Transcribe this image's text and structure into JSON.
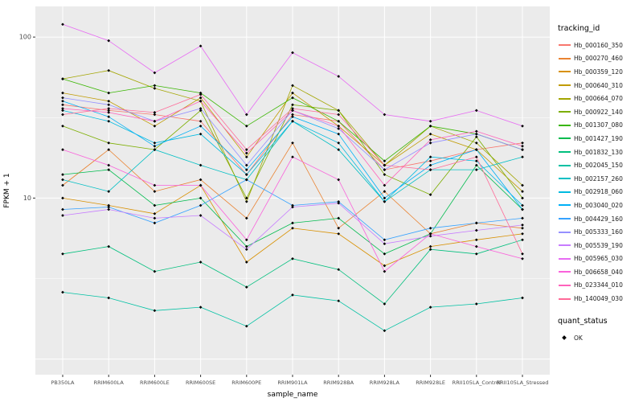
{
  "colors": {
    "panel_bg": "#EBEBEB",
    "grid": "#FFFFFF",
    "tick_text": "#4D4D4D",
    "axis_text": "#000000",
    "point": "#000000"
  },
  "legend": {
    "tracking_title": "tracking_id",
    "quant_title": "quant_status",
    "quant_ok_label": "OK"
  },
  "chart_data": {
    "type": "line",
    "title": "",
    "xlabel": "sample_name",
    "ylabel": "FPKM + 1",
    "y_scale": "log10",
    "ylim": [
      0.8,
      155
    ],
    "grid": {
      "major_y": [
        1,
        10,
        100
      ],
      "minor_y": [
        3.162,
        31.62
      ],
      "vertical_at_categories": true
    },
    "yticks": [
      {
        "label": "100",
        "value": 100
      },
      {
        "label": "10",
        "value": 10
      }
    ],
    "categories": [
      "PB350LA",
      "RRIM600LA",
      "RRIM600LE",
      "RRIM600SE",
      "RRIM600PE",
      "RRIM901LA",
      "RRIM928BA",
      "RRIM928LA",
      "RRIM928LE",
      "RRII105LA_Control",
      "RRII105LA_Stressed"
    ],
    "point_marker": "black-square",
    "legend_position": "right",
    "series": [
      {
        "name": "Hb_000160_350",
        "color": "#F8766D",
        "values": [
          38,
          35,
          33,
          30,
          14,
          33,
          30,
          15,
          17,
          20,
          22
        ]
      },
      {
        "name": "Hb_000270_460",
        "color": "#EA8331",
        "values": [
          12,
          20,
          11,
          13,
          7.5,
          22,
          6.5,
          11,
          6,
          7,
          6.5
        ]
      },
      {
        "name": "Hb_000359_120",
        "color": "#D89000",
        "values": [
          10,
          9,
          8,
          12,
          4,
          6.5,
          6,
          3.8,
          5,
          5.5,
          6
        ]
      },
      {
        "name": "Hb_000640_310",
        "color": "#C09B00",
        "values": [
          45,
          40,
          28,
          42,
          18,
          45,
          28,
          16,
          25,
          20,
          11
        ]
      },
      {
        "name": "Hb_000664_070",
        "color": "#A3A500",
        "values": [
          55,
          62,
          48,
          40,
          9.5,
          50,
          35,
          16,
          28,
          22,
          12
        ]
      },
      {
        "name": "Hb_000922_140",
        "color": "#7CAE00",
        "values": [
          28,
          22,
          20,
          35,
          10,
          38,
          35,
          14,
          10.5,
          24,
          10
        ]
      },
      {
        "name": "Hb_001307_080",
        "color": "#39B600",
        "values": [
          55,
          45,
          50,
          45,
          28,
          42,
          30,
          17,
          28,
          25,
          20
        ]
      },
      {
        "name": "Hb_001427_190",
        "color": "#00BB4E",
        "values": [
          14,
          15,
          9,
          10,
          5,
          7,
          7.5,
          4.5,
          6,
          16,
          8.5
        ]
      },
      {
        "name": "Hb_001832_130",
        "color": "#00BF7D",
        "values": [
          4.5,
          5,
          3.5,
          4,
          2.8,
          4.2,
          3.6,
          2.2,
          4.8,
          4.5,
          5.5
        ]
      },
      {
        "name": "Hb_002045_150",
        "color": "#00C1A3",
        "values": [
          2.6,
          2.4,
          2,
          2.1,
          1.6,
          2.5,
          2.3,
          1.5,
          2.1,
          2.2,
          2.4
        ]
      },
      {
        "name": "Hb_002157_260",
        "color": "#00BFC4",
        "values": [
          13,
          11,
          20,
          16,
          13,
          30,
          20,
          9.5,
          15,
          15,
          18
        ]
      },
      {
        "name": "Hb_002918_060",
        "color": "#00BAE0",
        "values": [
          35,
          30,
          22,
          25,
          14,
          30,
          22,
          9.5,
          18,
          17,
          9
        ]
      },
      {
        "name": "Hb_003040_020",
        "color": "#00B0F6",
        "values": [
          40,
          32,
          21,
          28,
          15,
          32,
          25,
          10,
          16,
          20,
          8.5
        ]
      },
      {
        "name": "Hb_004429_160",
        "color": "#35A2FF",
        "values": [
          8.5,
          8.8,
          7,
          9,
          13,
          9,
          9.5,
          5.5,
          6.5,
          7,
          7.5
        ]
      },
      {
        "name": "Hb_005333_160",
        "color": "#9590FF",
        "values": [
          42,
          38,
          30,
          36,
          16,
          35,
          27,
          15,
          22,
          25,
          20
        ]
      },
      {
        "name": "Hb_005539_190",
        "color": "#C77CFF",
        "values": [
          7.8,
          8.5,
          7.5,
          7.8,
          4.8,
          8.8,
          9.3,
          5.2,
          5.8,
          6.3,
          6.8
        ]
      },
      {
        "name": "Hb_005965_030",
        "color": "#E76BF3",
        "values": [
          120,
          95,
          60,
          88,
          33,
          80,
          57,
          33,
          30,
          35,
          28
        ]
      },
      {
        "name": "Hb_006658_040",
        "color": "#FA62DB",
        "values": [
          20,
          16,
          12,
          12,
          5.5,
          18,
          13,
          3.5,
          6,
          5,
          4.2
        ]
      },
      {
        "name": "Hb_023344_010",
        "color": "#FF62BC",
        "values": [
          36,
          34,
          30,
          40,
          19,
          35,
          28,
          12,
          23,
          26,
          21
        ]
      },
      {
        "name": "Hb_140049_030",
        "color": "#FF6A98",
        "values": [
          33,
          36,
          34,
          44,
          20,
          36,
          33,
          16,
          15,
          18,
          4.5
        ]
      }
    ]
  }
}
